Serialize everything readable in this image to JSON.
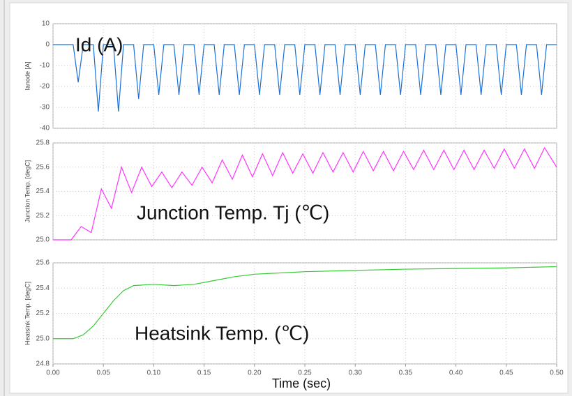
{
  "chart_data": [
    {
      "type": "line",
      "ylabel": "Ianode [A]",
      "annotation": "Id (A)",
      "color": "#1a6fd8",
      "x": [
        0,
        0.02,
        0.025,
        0.03,
        0.04,
        0.045,
        0.05,
        0.06,
        0.065,
        0.07,
        0.08,
        0.085,
        0.09,
        0.1,
        0.105,
        0.11,
        0.12,
        0.125,
        0.13,
        0.14,
        0.145,
        0.15,
        0.16,
        0.165,
        0.17,
        0.18,
        0.185,
        0.19,
        0.2,
        0.205,
        0.21,
        0.22,
        0.225,
        0.23,
        0.24,
        0.245,
        0.25,
        0.26,
        0.265,
        0.27,
        0.28,
        0.285,
        0.29,
        0.3,
        0.305,
        0.31,
        0.32,
        0.325,
        0.33,
        0.34,
        0.345,
        0.35,
        0.36,
        0.365,
        0.37,
        0.38,
        0.385,
        0.39,
        0.4,
        0.405,
        0.41,
        0.42,
        0.425,
        0.43,
        0.44,
        0.445,
        0.45,
        0.46,
        0.465,
        0.47,
        0.48,
        0.485,
        0.49,
        0.5
      ],
      "values": [
        0,
        0,
        -18,
        0,
        0,
        -32,
        0,
        0,
        -32,
        0,
        0,
        -26,
        0,
        0,
        -24,
        0,
        0,
        -24,
        0,
        0,
        -24,
        0,
        0,
        -24,
        0,
        0,
        -24,
        0,
        0,
        -24,
        0,
        0,
        -24,
        0,
        0,
        -24,
        0,
        0,
        -24,
        0,
        0,
        -24,
        0,
        0,
        -24,
        0,
        0,
        -24,
        0,
        0,
        -24,
        0,
        0,
        -24,
        0,
        0,
        -24,
        0,
        0,
        -24,
        0,
        0,
        -24,
        0,
        0,
        -24,
        0,
        0,
        -24,
        0,
        0,
        -24,
        0,
        0
      ],
      "xlim": [
        0,
        0.5
      ],
      "xticks": [
        0,
        0.05,
        0.1,
        0.15,
        0.2,
        0.25,
        0.3,
        0.35,
        0.4,
        0.45,
        0.5
      ],
      "ylim": [
        -40,
        10
      ],
      "yticks": [
        -40,
        -30,
        -20,
        -10,
        0,
        10
      ],
      "grid": true
    },
    {
      "type": "line",
      "ylabel": "Junction Temp. [degC]",
      "annotation": "Junction Temp. Tj (℃)",
      "color": "#ff33ff",
      "x": [
        0,
        0.018,
        0.028,
        0.038,
        0.048,
        0.058,
        0.068,
        0.078,
        0.088,
        0.098,
        0.108,
        0.118,
        0.128,
        0.138,
        0.148,
        0.158,
        0.168,
        0.178,
        0.188,
        0.198,
        0.208,
        0.218,
        0.228,
        0.238,
        0.248,
        0.258,
        0.268,
        0.278,
        0.288,
        0.298,
        0.308,
        0.318,
        0.328,
        0.338,
        0.348,
        0.358,
        0.368,
        0.378,
        0.388,
        0.398,
        0.408,
        0.418,
        0.428,
        0.438,
        0.448,
        0.458,
        0.468,
        0.478,
        0.488,
        0.5
      ],
      "values": [
        25.0,
        25.0,
        25.11,
        25.06,
        25.42,
        25.26,
        25.6,
        25.39,
        25.6,
        25.44,
        25.56,
        25.43,
        25.56,
        25.45,
        25.6,
        25.47,
        25.66,
        25.5,
        25.7,
        25.52,
        25.71,
        25.53,
        25.72,
        25.55,
        25.71,
        25.55,
        25.72,
        25.56,
        25.72,
        25.56,
        25.73,
        25.57,
        25.73,
        25.57,
        25.73,
        25.58,
        25.74,
        25.58,
        25.74,
        25.58,
        25.74,
        25.58,
        25.74,
        25.59,
        25.75,
        25.59,
        25.75,
        25.59,
        25.76,
        25.6
      ],
      "xlim": [
        0,
        0.5
      ],
      "xticks": [
        0,
        0.05,
        0.1,
        0.15,
        0.2,
        0.25,
        0.3,
        0.35,
        0.4,
        0.45,
        0.5
      ],
      "ylim": [
        25.0,
        25.8
      ],
      "yticks": [
        {
          "value": 25,
          "label": "25.0"
        },
        25.2,
        25.4,
        25.6,
        25.8
      ],
      "grid": true
    },
    {
      "type": "line",
      "ylabel": "Heatsink Temp. [degC]",
      "annotation": "Heatsink Temp. (℃)",
      "xlabel": "Time (sec)",
      "color": "#33cc33",
      "x": [
        0,
        0.02,
        0.03,
        0.04,
        0.05,
        0.06,
        0.07,
        0.08,
        0.1,
        0.12,
        0.14,
        0.16,
        0.18,
        0.2,
        0.25,
        0.3,
        0.35,
        0.4,
        0.45,
        0.5
      ],
      "values": [
        25.0,
        25.0,
        25.03,
        25.1,
        25.2,
        25.3,
        25.38,
        25.42,
        25.43,
        25.42,
        25.43,
        25.46,
        25.49,
        25.51,
        25.53,
        25.54,
        25.55,
        25.555,
        25.56,
        25.57
      ],
      "xlim": [
        0,
        0.5
      ],
      "xticks": [
        {
          "value": 0,
          "label": "0.00"
        },
        0.05,
        {
          "value": 0.1,
          "label": "0.10"
        },
        0.15,
        {
          "value": 0.2,
          "label": "0.20"
        },
        0.25,
        {
          "value": 0.3,
          "label": "0.30"
        },
        0.35,
        {
          "value": 0.4,
          "label": "0.40"
        },
        0.45,
        {
          "value": 0.5,
          "label": "0.50"
        }
      ],
      "ylim": [
        24.8,
        25.6
      ],
      "yticks": [
        24.8,
        {
          "value": 25,
          "label": "25.0"
        },
        25.2,
        25.4,
        25.6
      ],
      "grid": true
    }
  ]
}
